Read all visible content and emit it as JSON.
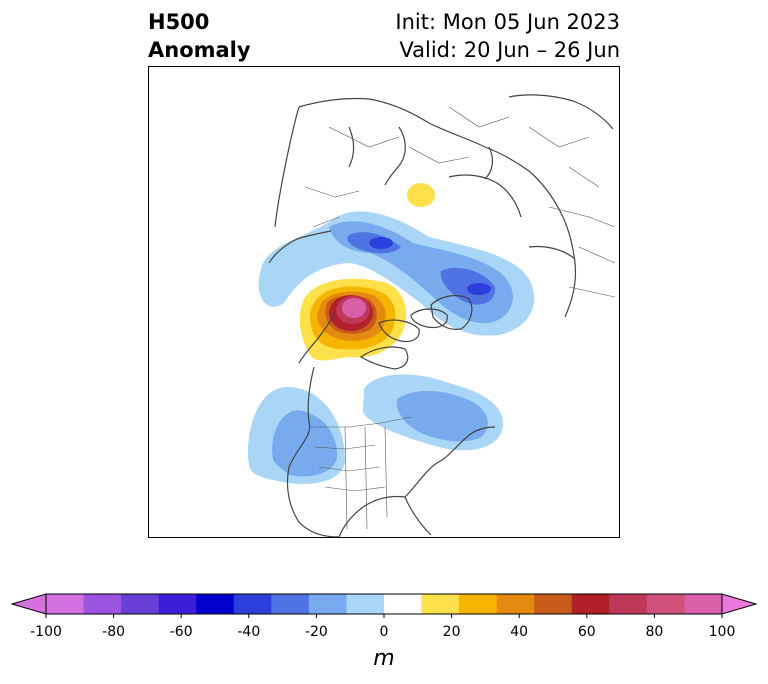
{
  "title": {
    "left_line1": "H500",
    "left_line2": "Anomaly",
    "right_line1": "Init: Mon 05 Jun 2023",
    "right_line2": "Valid: 20 Jun – 26 Jun"
  },
  "colorbar": {
    "unit": "m",
    "ticks": [
      "-100",
      "-80",
      "-60",
      "-40",
      "-20",
      "0",
      "20",
      "40",
      "60",
      "80",
      "100"
    ],
    "colors": [
      "#d470e0",
      "#9b55e0",
      "#6a3fd8",
      "#3c1ed8",
      "#0000cd",
      "#2a3fdc",
      "#5073e4",
      "#78aaee",
      "#a9d6f7",
      "#ffffff",
      "#fde04a",
      "#f5b400",
      "#e48a10",
      "#c85a1a",
      "#b2202a",
      "#c03858",
      "#d0507a",
      "#d860a8",
      "#e878da",
      "#e878da"
    ]
  },
  "map": {
    "features": [
      {
        "name": "positive-anomaly-center",
        "anomaly_m": 100
      },
      {
        "name": "negative-anomaly-siberia",
        "anomaly_m": -60
      },
      {
        "name": "negative-anomaly-west-us",
        "anomaly_m": -30
      },
      {
        "name": "negative-anomaly-hudson",
        "anomaly_m": -30
      },
      {
        "name": "positive-anomaly-scandinavia",
        "anomaly_m": 10
      }
    ]
  }
}
